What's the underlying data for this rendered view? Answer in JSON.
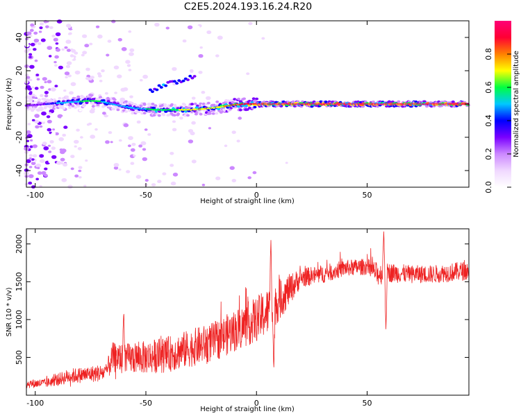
{
  "title": "C2E5.2024.193.16.24.R20",
  "colors": {
    "trace": "#ee2222",
    "axes": "#000000",
    "colormap": [
      "#ffffff",
      "#f0d8ff",
      "#cc88ff",
      "#7a00ff",
      "#0000ff",
      "#00c8ff",
      "#00ff40",
      "#ffff00",
      "#ff8000",
      "#ff0033",
      "#ff0077"
    ]
  },
  "chart_data": [
    {
      "type": "heatmap",
      "name": "spectrogram",
      "xlabel": "Height of straight line (km)",
      "ylabel": "Frequency (Hz)",
      "xlim": [
        -104,
        96
      ],
      "ylim": [
        -50,
        50
      ],
      "xticks": [
        -100,
        -50,
        0,
        50
      ],
      "yticks": [
        -40,
        -20,
        0,
        20,
        40
      ],
      "colorbar": {
        "label": "Normalized spectral amplitude",
        "range": [
          0,
          1
        ],
        "ticks": [
          "0.0",
          "0.2",
          "0.4",
          "0.6",
          "0.8"
        ]
      },
      "ridge": {
        "x": [
          -104,
          -95,
          -90,
          -85,
          -80,
          -75,
          -70,
          -65,
          -60,
          -55,
          -50,
          -45,
          -40,
          -35,
          -30,
          -25,
          -20,
          -15,
          -10,
          -5,
          0,
          10,
          20,
          40,
          50,
          55,
          60,
          96
        ],
        "y": [
          -1,
          0,
          0.5,
          1,
          1.5,
          2,
          1.5,
          0,
          -1.5,
          -2.5,
          -3,
          -3.5,
          -3.5,
          -3.5,
          -3.5,
          -3,
          -2.5,
          -1.5,
          -0.5,
          0,
          0,
          0,
          0,
          0,
          0,
          0,
          0,
          0
        ],
        "strength": [
          0.25,
          0.35,
          0.45,
          0.5,
          0.55,
          0.55,
          0.55,
          0.5,
          0.5,
          0.5,
          0.55,
          0.6,
          0.6,
          0.65,
          0.65,
          0.65,
          0.7,
          0.75,
          0.8,
          0.9,
          0.95,
          0.97,
          1.0,
          1.0,
          1.0,
          0.95,
          1.0,
          1.0
        ]
      }
    },
    {
      "type": "line",
      "name": "snr",
      "xlabel": "Height of straight line (km)",
      "ylabel": "SNR (10 * v/v)",
      "xlim": [
        -104,
        96
      ],
      "ylim": [
        0,
        2200
      ],
      "xticks": [
        -100,
        -50,
        0,
        50
      ],
      "yticks": [
        500,
        1000,
        1500,
        2000
      ],
      "envelope_x": [
        -104,
        -95,
        -85,
        -75,
        -68,
        -65,
        -60,
        -50,
        -40,
        -30,
        -20,
        -10,
        0,
        5,
        10,
        20,
        30,
        40,
        50,
        55,
        60,
        70,
        80,
        96
      ],
      "envelope_y": [
        150,
        160,
        250,
        280,
        300,
        500,
        480,
        500,
        540,
        620,
        700,
        850,
        1000,
        1100,
        1250,
        1550,
        1600,
        1680,
        1700,
        1600,
        1620,
        1600,
        1600,
        1650
      ],
      "noise_amplitude": [
        60,
        60,
        100,
        110,
        120,
        200,
        200,
        220,
        240,
        250,
        260,
        280,
        300,
        320,
        280,
        130,
        120,
        110,
        110,
        150,
        130,
        120,
        120,
        130
      ],
      "features": [
        {
          "x": -60,
          "y": 1130
        },
        {
          "x": 6.5,
          "y": 2090
        },
        {
          "x": 7.8,
          "y": 320
        },
        {
          "x": 57.5,
          "y": 2180
        },
        {
          "x": 58.5,
          "y": 850
        }
      ]
    }
  ]
}
